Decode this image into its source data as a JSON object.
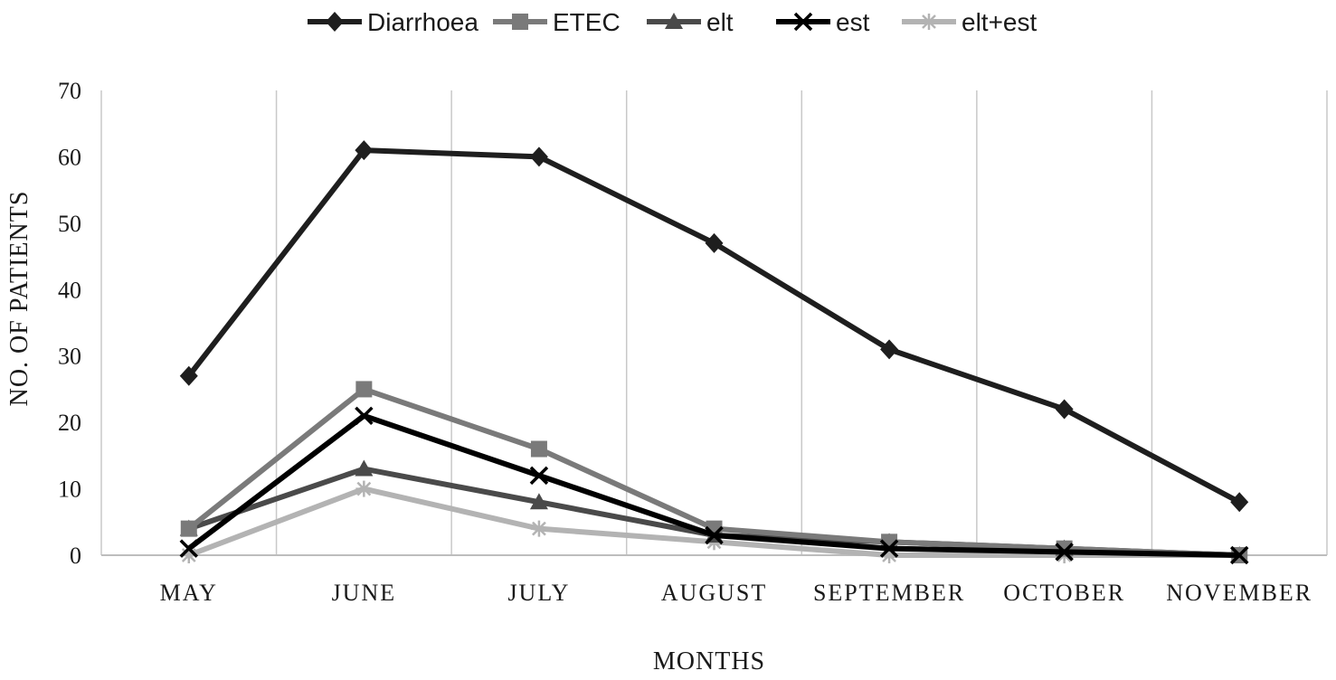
{
  "chart_data": {
    "type": "line",
    "title": "",
    "xlabel": "MONTHS",
    "ylabel": "NO. OF PATIENTS",
    "categories": [
      "MAY",
      "JUNE",
      "JULY",
      "AUGUST",
      "SEPTEMBER",
      "OCTOBER",
      "NOVEMBER"
    ],
    "ylim": [
      0,
      70
    ],
    "yticks": [
      "0",
      "10",
      "20",
      "30",
      "40",
      "50",
      "60",
      "70"
    ],
    "grid": "vertical",
    "legend_position": "top",
    "series": [
      {
        "name": "Diarrhoea",
        "values": [
          27,
          61,
          60,
          47,
          31,
          22,
          8
        ],
        "color": "#1e1e1e",
        "marker": "diamond"
      },
      {
        "name": "ETEC",
        "values": [
          4,
          25,
          16,
          4,
          2,
          1,
          0
        ],
        "color": "#7a7a7a",
        "marker": "square"
      },
      {
        "name": "elt",
        "values": [
          4,
          13,
          8,
          3,
          2,
          1,
          0
        ],
        "color": "#4a4a4a",
        "marker": "triangle"
      },
      {
        "name": "est",
        "values": [
          1,
          21,
          12,
          3,
          1,
          0.5,
          0
        ],
        "color": "#000000",
        "marker": "x"
      },
      {
        "name": "elt+est",
        "values": [
          0,
          10,
          4,
          2,
          0,
          0,
          0
        ],
        "color": "#b3b3b3",
        "marker": "star"
      }
    ]
  }
}
